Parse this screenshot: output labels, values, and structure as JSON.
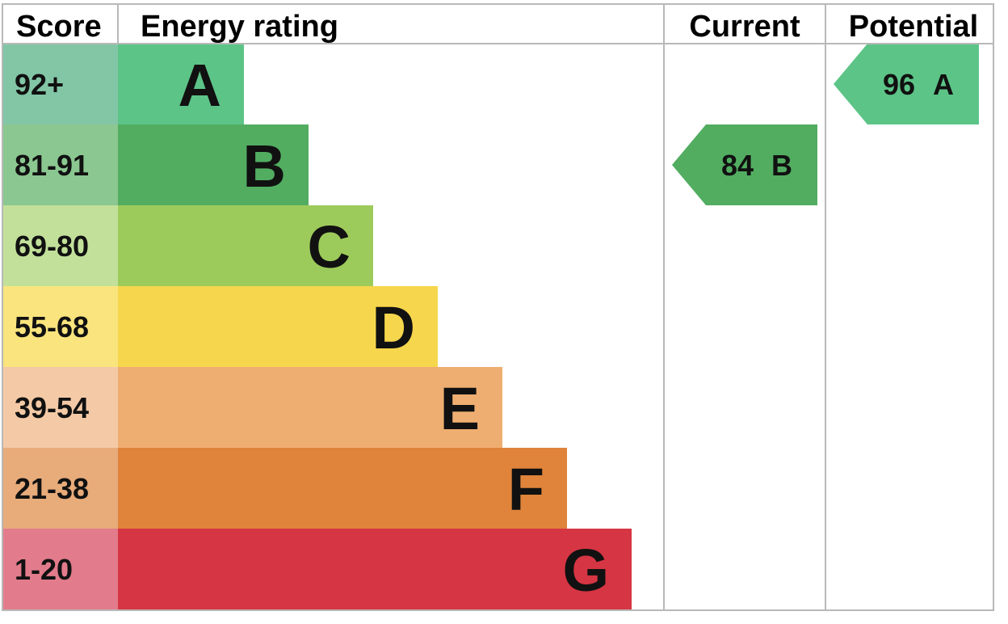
{
  "headers": {
    "score": "Score",
    "energy_rating": "Energy rating",
    "current": "Current",
    "potential": "Potential"
  },
  "chart_data": {
    "type": "bar",
    "bands": [
      {
        "range": "92+",
        "letter": "A",
        "color": "#5cc487",
        "score_color": "#82c6a6",
        "length": 1
      },
      {
        "range": "81-91",
        "letter": "B",
        "color": "#52ad61",
        "score_color": "#8bc790",
        "length": 2
      },
      {
        "range": "69-80",
        "letter": "C",
        "color": "#9dcb5b",
        "score_color": "#c2e09a",
        "length": 3
      },
      {
        "range": "55-68",
        "letter": "D",
        "color": "#f6d64c",
        "score_color": "#f9e47d",
        "length": 4
      },
      {
        "range": "39-54",
        "letter": "E",
        "color": "#efae71",
        "score_color": "#f4caa6",
        "length": 5
      },
      {
        "range": "21-38",
        "letter": "F",
        "color": "#df843a",
        "score_color": "#e8ab7a",
        "length": 6
      },
      {
        "range": "1-20",
        "letter": "G",
        "color": "#d63543",
        "score_color": "#e27b8b",
        "length": 7
      }
    ],
    "current": {
      "score": "84",
      "letter": "B",
      "color": "#52ad61"
    },
    "potential": {
      "score": "96",
      "letter": "A",
      "color": "#5cc487"
    }
  }
}
